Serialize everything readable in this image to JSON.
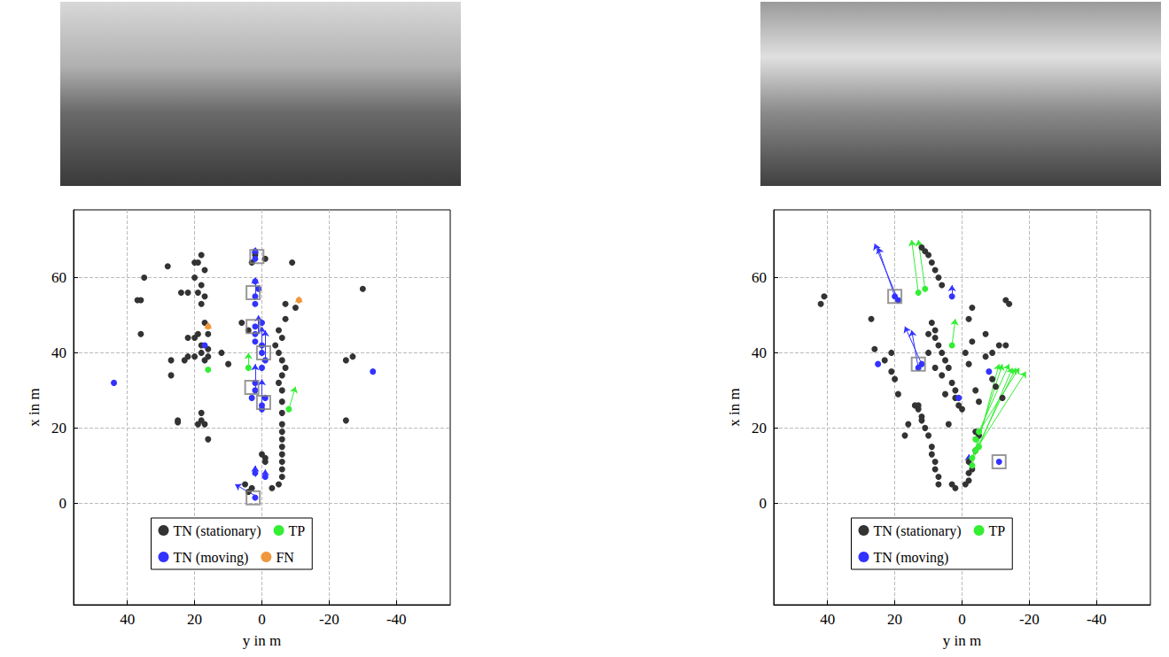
{
  "chart_data": [
    {
      "type": "scatter",
      "xlabel": "y in m",
      "ylabel": "x in m",
      "xlim": [
        56,
        -56
      ],
      "xticks": [
        40,
        20,
        0,
        -20,
        -40
      ],
      "ylim": [
        -27,
        78
      ],
      "yticks": [
        0,
        20,
        40,
        60
      ],
      "grid": true,
      "legend": "bottom",
      "series": [
        {
          "name": "TN (stationary)",
          "color": "#333333",
          "values": [
            [
              36,
              54
            ],
            [
              37,
              54
            ],
            [
              35,
              60
            ],
            [
              36,
              45
            ],
            [
              28,
              63
            ],
            [
              27,
              34
            ],
            [
              27,
              38
            ],
            [
              25,
              22
            ],
            [
              25,
              21.5
            ],
            [
              24,
              56
            ],
            [
              18,
              66
            ],
            [
              19,
              64
            ],
            [
              17,
              62
            ],
            [
              20,
              60
            ],
            [
              18,
              58
            ],
            [
              19,
              56
            ],
            [
              17,
              55
            ],
            [
              18,
              53
            ],
            [
              17,
              48
            ],
            [
              19,
              45
            ],
            [
              20,
              44
            ],
            [
              18,
              40
            ],
            [
              20,
              39
            ],
            [
              22,
              39
            ],
            [
              17,
              38
            ],
            [
              16,
              39
            ],
            [
              18,
              42
            ],
            [
              16,
              45
            ],
            [
              16,
              41
            ],
            [
              18,
              24
            ],
            [
              18,
              22
            ],
            [
              17,
              21
            ],
            [
              19,
              21
            ],
            [
              16,
              17
            ],
            [
              23,
              38
            ],
            [
              22,
              44
            ],
            [
              22,
              56
            ],
            [
              20,
              64
            ],
            [
              2,
              66
            ],
            [
              -1,
              65
            ],
            [
              3,
              64
            ],
            [
              -6,
              38
            ],
            [
              -5,
              40
            ],
            [
              -7,
              36
            ],
            [
              -6,
              34
            ],
            [
              -5,
              32
            ],
            [
              -6,
              30
            ],
            [
              -6,
              27
            ],
            [
              -6,
              24
            ],
            [
              -6,
              21
            ],
            [
              -6,
              19
            ],
            [
              -6,
              17
            ],
            [
              -6,
              15
            ],
            [
              -6,
              13
            ],
            [
              -6,
              11
            ],
            [
              -6,
              9
            ],
            [
              -6,
              7
            ],
            [
              -5,
              5
            ],
            [
              -3,
              4
            ],
            [
              -6,
              44
            ],
            [
              -5,
              46
            ],
            [
              -7,
              49
            ],
            [
              -4,
              42
            ],
            [
              -1,
              12
            ],
            [
              -1,
              11
            ],
            [
              0,
              13
            ],
            [
              -7,
              53
            ],
            [
              -10,
              52
            ],
            [
              -9,
              64
            ],
            [
              -30,
              57
            ],
            [
              -25,
              38
            ],
            [
              -27,
              39
            ],
            [
              -25,
              22
            ],
            [
              6,
              48
            ],
            [
              4,
              46
            ],
            [
              5,
              5
            ],
            [
              3,
              4
            ],
            [
              4,
              3
            ],
            [
              10,
              37
            ],
            [
              12,
              40
            ]
          ]
        },
        {
          "name": "TP",
          "color": "#33ee33",
          "values": [
            [
              -8,
              25
            ],
            [
              16,
              35.5
            ],
            [
              4,
              36
            ]
          ],
          "arrows": [
            [
              -8,
              25,
              -10,
              31
            ],
            [
              4,
              36,
              4,
              40
            ]
          ]
        },
        {
          "name": "TN (moving)",
          "color": "#3333ff",
          "values": [
            [
              44,
              32
            ],
            [
              -33,
              35
            ],
            [
              17,
              42
            ],
            [
              2,
              1.5
            ],
            [
              2,
              8
            ],
            [
              -1,
              7
            ],
            [
              2,
              65
            ],
            [
              2,
              67
            ],
            [
              2,
              59
            ],
            [
              1,
              57
            ],
            [
              2,
              55
            ],
            [
              2,
              53
            ],
            [
              2,
              47
            ],
            [
              2,
              45
            ],
            [
              2,
              43
            ],
            [
              0,
              48
            ],
            [
              0,
              42
            ],
            [
              0,
              40
            ],
            [
              -1,
              38
            ],
            [
              2,
              30
            ],
            [
              3,
              28
            ],
            [
              2,
              32
            ],
            [
              0,
              26
            ],
            [
              0,
              25
            ],
            [
              -1,
              28
            ],
            [
              0,
              36
            ]
          ],
          "arrows": [
            [
              2,
              2,
              8,
              5
            ],
            [
              2,
              7,
              2,
              10
            ],
            [
              -1,
              7,
              -1,
              9
            ],
            [
              0,
              40,
              0,
              47
            ],
            [
              -1,
              38,
              -1,
              46
            ],
            [
              0,
              26,
              0,
              33
            ],
            [
              1,
              45,
              1,
              50
            ],
            [
              2,
              30,
              2,
              37
            ],
            [
              2,
              55,
              2,
              60
            ],
            [
              2,
              65,
              2,
              68
            ]
          ]
        },
        {
          "name": "FN",
          "color": "#f0963c",
          "values": [
            [
              16,
              47
            ],
            [
              -11,
              54
            ]
          ],
          "arrows": [
            [
              16,
              47,
              16,
              48
            ],
            [
              -11,
              54,
              -11,
              55
            ]
          ]
        }
      ],
      "clusters": [
        [
          2.6,
          1.4
        ],
        [
          3,
          30.8
        ],
        [
          -0.5,
          26.8
        ],
        [
          -0.5,
          40
        ],
        [
          2.6,
          47
        ],
        [
          2.6,
          56
        ],
        [
          1.5,
          65.6
        ]
      ]
    },
    {
      "type": "scatter",
      "xlabel": "y in m",
      "ylabel": "x in m",
      "xlim": [
        56,
        -56
      ],
      "xticks": [
        40,
        20,
        0,
        -20,
        -40
      ],
      "ylim": [
        -27,
        78
      ],
      "yticks": [
        0,
        20,
        40,
        60
      ],
      "grid": true,
      "legend": "bottom",
      "series": [
        {
          "name": "TN (stationary)",
          "color": "#333333",
          "values": [
            [
              12,
              68
            ],
            [
              11,
              67
            ],
            [
              10,
              66
            ],
            [
              9,
              64
            ],
            [
              8,
              62
            ],
            [
              7,
              60
            ],
            [
              6,
              58
            ],
            [
              9,
              48
            ],
            [
              8,
              46
            ],
            [
              8,
              44
            ],
            [
              7,
              42
            ],
            [
              6,
              40
            ],
            [
              5,
              38
            ],
            [
              4,
              36
            ],
            [
              3,
              32
            ],
            [
              2,
              30
            ],
            [
              2,
              28
            ],
            [
              1,
              26
            ],
            [
              0,
              25
            ],
            [
              8,
              36
            ],
            [
              6,
              34
            ],
            [
              10,
              40
            ],
            [
              10,
              45
            ],
            [
              14,
              26
            ],
            [
              13,
              25
            ],
            [
              12,
              23
            ],
            [
              12,
              22
            ],
            [
              11,
              20
            ],
            [
              10,
              18
            ],
            [
              9,
              15
            ],
            [
              9,
              13
            ],
            [
              8,
              11
            ],
            [
              8,
              9
            ],
            [
              7,
              7
            ],
            [
              7,
              5
            ],
            [
              13,
              26
            ],
            [
              42,
              53
            ],
            [
              41,
              55
            ],
            [
              26,
              41
            ],
            [
              23,
              38
            ],
            [
              21,
              40
            ],
            [
              21,
              35
            ],
            [
              20,
              33
            ],
            [
              19,
              29
            ],
            [
              27,
              49
            ],
            [
              -13,
              54
            ],
            [
              -14,
              53
            ],
            [
              -7,
              45
            ],
            [
              -9,
              40
            ],
            [
              -11,
              42
            ],
            [
              -13,
              42
            ],
            [
              -10,
              31
            ],
            [
              -12,
              28
            ],
            [
              -7,
              39
            ],
            [
              -9,
              33
            ],
            [
              -4,
              30
            ],
            [
              -5,
              27
            ],
            [
              -2,
              37
            ],
            [
              -1,
              40
            ],
            [
              -3,
              43
            ],
            [
              -2,
              49
            ],
            [
              -3,
              52
            ],
            [
              5,
              29
            ],
            [
              4,
              21
            ],
            [
              -4,
              19
            ],
            [
              -5,
              18
            ],
            [
              -2,
              8
            ],
            [
              -3,
              9
            ],
            [
              -2,
              11
            ],
            [
              -4,
              14
            ],
            [
              2,
              4
            ],
            [
              3,
              5
            ],
            [
              -2,
              6
            ],
            [
              -1,
              5
            ],
            [
              16,
              21
            ],
            [
              17,
              18
            ]
          ]
        },
        {
          "name": "TP",
          "color": "#33ee33",
          "values": [
            [
              13,
              56
            ],
            [
              11,
              57
            ],
            [
              -4,
              17
            ],
            [
              -5,
              15
            ],
            [
              -3,
              12
            ],
            [
              -5,
              19
            ],
            [
              3,
              42
            ],
            [
              -4,
              14
            ],
            [
              -3,
              10
            ]
          ],
          "arrows": [
            [
              13,
              56,
              15,
              70
            ],
            [
              11,
              57,
              13,
              70
            ],
            [
              3,
              42,
              2,
              49
            ],
            [
              -4,
              17,
              -14,
              37
            ],
            [
              -5,
              15,
              -15,
              36
            ],
            [
              -3,
              12,
              -16,
              36
            ],
            [
              -5,
              19,
              -17,
              36
            ],
            [
              -3,
              12,
              -12,
              37
            ],
            [
              -4,
              14,
              -19,
              35
            ],
            [
              -3,
              10,
              -11,
              37
            ]
          ]
        },
        {
          "name": "TN (moving)",
          "color": "#3333ff",
          "values": [
            [
              19,
              54
            ],
            [
              20,
              55
            ],
            [
              25,
              37
            ],
            [
              12,
              37
            ],
            [
              13,
              36
            ],
            [
              -8,
              35
            ],
            [
              -11,
              11
            ],
            [
              3,
              55
            ],
            [
              1,
              28
            ]
          ],
          "arrows": [
            [
              19,
              54,
              26,
              69
            ],
            [
              20,
              55,
              25,
              68
            ],
            [
              12,
              37,
              17,
              47
            ],
            [
              13,
              36,
              15,
              46
            ],
            [
              3,
              55,
              3,
              58
            ],
            [
              -2,
              10,
              -2,
              13
            ]
          ]
        }
      ],
      "clusters": [
        [
          20,
          55
        ],
        [
          13,
          37
        ],
        [
          -11,
          11
        ]
      ]
    }
  ]
}
